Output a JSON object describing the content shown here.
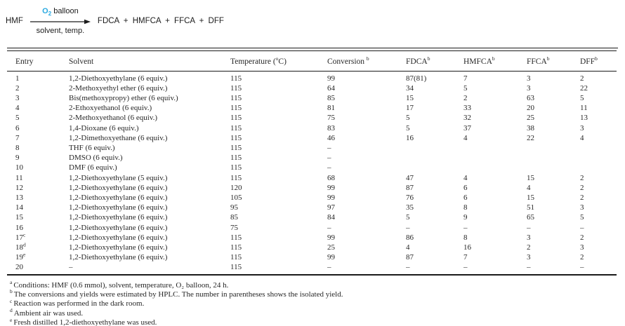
{
  "scheme": {
    "reactant": "HMF",
    "arrow_top_o2": "O",
    "arrow_top_o2_sub": "2",
    "arrow_top_rest": "balloon",
    "arrow_bottom": "solvent, temp.",
    "products": "FDCA + HMFCA + FFCA + DFF",
    "o2_color": "#29a9e0"
  },
  "table": {
    "headers": [
      {
        "text": "Entry",
        "sup": "",
        "post": ""
      },
      {
        "text": "Solvent",
        "sup": "",
        "post": ""
      },
      {
        "text": "Temperature (",
        "sup": "o",
        "post": "C)"
      },
      {
        "text": "Conversion ",
        "sup": "b",
        "post": ""
      },
      {
        "text": "FDCA",
        "sup": "b",
        "post": ""
      },
      {
        "text": "HMFCA",
        "sup": "b",
        "post": ""
      },
      {
        "text": "FFCA",
        "sup": "b",
        "post": ""
      },
      {
        "text": "DFF",
        "sup": "b",
        "post": ""
      }
    ],
    "rows": [
      {
        "entry": "1",
        "entry_sup": "",
        "solvent": "1,2-Diethoxyethylane (6 equiv.)",
        "temperature": "115",
        "conversion": "99",
        "fdca": "87(81)",
        "hmfca": "7",
        "ffca": "3",
        "dff": "2"
      },
      {
        "entry": "2",
        "entry_sup": "",
        "solvent": "2-Methoxyethyl ether (6 equiv.)",
        "temperature": "115",
        "conversion": "64",
        "fdca": "34",
        "hmfca": "5",
        "ffca": "3",
        "dff": "22"
      },
      {
        "entry": "3",
        "entry_sup": "",
        "solvent": "Bis(methoxypropy) ether (6 equiv.)",
        "temperature": "115",
        "conversion": "85",
        "fdca": "15",
        "hmfca": "2",
        "ffca": "63",
        "dff": "5"
      },
      {
        "entry": "4",
        "entry_sup": "",
        "solvent": "2-Ethoxyethanol (6 equiv.)",
        "temperature": "115",
        "conversion": "81",
        "fdca": "17",
        "hmfca": "33",
        "ffca": "20",
        "dff": "11"
      },
      {
        "entry": "5",
        "entry_sup": "",
        "solvent": "2-Methoxyethanol (6 equiv.)",
        "temperature": "115",
        "conversion": "75",
        "fdca": "5",
        "hmfca": "32",
        "ffca": "25",
        "dff": "13"
      },
      {
        "entry": "6",
        "entry_sup": "",
        "solvent": "1,4-Dioxane (6 equiv.)",
        "temperature": "115",
        "conversion": "83",
        "fdca": "5",
        "hmfca": "37",
        "ffca": "38",
        "dff": "3"
      },
      {
        "entry": "7",
        "entry_sup": "",
        "solvent": "1,2-Dimethoxyethane (6 equiv.)",
        "temperature": "115",
        "conversion": "46",
        "fdca": "16",
        "hmfca": "4",
        "ffca": "22",
        "dff": "4"
      },
      {
        "entry": "8",
        "entry_sup": "",
        "solvent": "THF (6 equiv.)",
        "temperature": "115",
        "conversion": "–",
        "fdca": "",
        "hmfca": "",
        "ffca": "",
        "dff": ""
      },
      {
        "entry": "9",
        "entry_sup": "",
        "solvent": "DMSO (6 equiv.)",
        "temperature": "115",
        "conversion": "–",
        "fdca": "",
        "hmfca": "",
        "ffca": "",
        "dff": ""
      },
      {
        "entry": "10",
        "entry_sup": "",
        "solvent": "DMF (6 equiv.)",
        "temperature": "115",
        "conversion": "–",
        "fdca": "",
        "hmfca": "",
        "ffca": "",
        "dff": ""
      },
      {
        "entry": "11",
        "entry_sup": "",
        "solvent": "1,2-Diethoxyethylane (5 equiv.)",
        "temperature": "115",
        "conversion": "68",
        "fdca": "47",
        "hmfca": "4",
        "ffca": "15",
        "dff": "2"
      },
      {
        "entry": "12",
        "entry_sup": "",
        "solvent": "1,2-Diethoxyethylane (6 equiv.)",
        "temperature": "120",
        "conversion": "99",
        "fdca": "87",
        "hmfca": "6",
        "ffca": "4",
        "dff": "2"
      },
      {
        "entry": "13",
        "entry_sup": "",
        "solvent": "1,2-Diethoxyethylane (6 equiv.)",
        "temperature": "105",
        "conversion": "99",
        "fdca": "76",
        "hmfca": "6",
        "ffca": "15",
        "dff": "2"
      },
      {
        "entry": "14",
        "entry_sup": "",
        "solvent": "1,2-Diethoxyethylane (6 equiv.)",
        "temperature": "95",
        "conversion": "97",
        "fdca": "35",
        "hmfca": "8",
        "ffca": "51",
        "dff": "3"
      },
      {
        "entry": "15",
        "entry_sup": "",
        "solvent": "1,2-Diethoxyethylane (6 equiv.)",
        "temperature": "85",
        "conversion": "84",
        "fdca": "5",
        "hmfca": "9",
        "ffca": "65",
        "dff": "5"
      },
      {
        "entry": "16",
        "entry_sup": "",
        "solvent": "1,2-Diethoxyethylane (6 equiv.)",
        "temperature": "75",
        "conversion": "–",
        "fdca": "–",
        "hmfca": "–",
        "ffca": "–",
        "dff": "–"
      },
      {
        "entry": "17",
        "entry_sup": "c",
        "solvent": "1,2-Diethoxyethylane (6 equiv.)",
        "temperature": "115",
        "conversion": "99",
        "fdca": "86",
        "hmfca": "8",
        "ffca": "3",
        "dff": "2"
      },
      {
        "entry": "18",
        "entry_sup": "d",
        "solvent": "1,2-Diethoxyethylane (6 equiv.)",
        "temperature": "115",
        "conversion": "25",
        "fdca": "4",
        "hmfca": "16",
        "ffca": "2",
        "dff": "3"
      },
      {
        "entry": "19",
        "entry_sup": "e",
        "solvent": "1,2-Diethoxyethylane (6 equiv.)",
        "temperature": "115",
        "conversion": "99",
        "fdca": "87",
        "hmfca": "7",
        "ffca": "3",
        "dff": "2"
      },
      {
        "entry": "20",
        "entry_sup": "",
        "solvent": "–",
        "temperature": "115",
        "conversion": "–",
        "fdca": "–",
        "hmfca": "–",
        "ffca": "–",
        "dff": "–"
      }
    ]
  },
  "footnotes": [
    {
      "marker": "a",
      "text": "Conditions: HMF (0.6 mmol), solvent, temperature, O₂ balloon, 24 h."
    },
    {
      "marker": "b",
      "text": "The conversions and yields were estimated by HPLC. The number in parentheses shows the isolated yield."
    },
    {
      "marker": "c",
      "text": "Reaction was performed in the dark room."
    },
    {
      "marker": "d",
      "text": "Ambient air was used."
    },
    {
      "marker": "e",
      "text": "Fresh distilled 1,2-diethoxyethylane was used."
    }
  ]
}
